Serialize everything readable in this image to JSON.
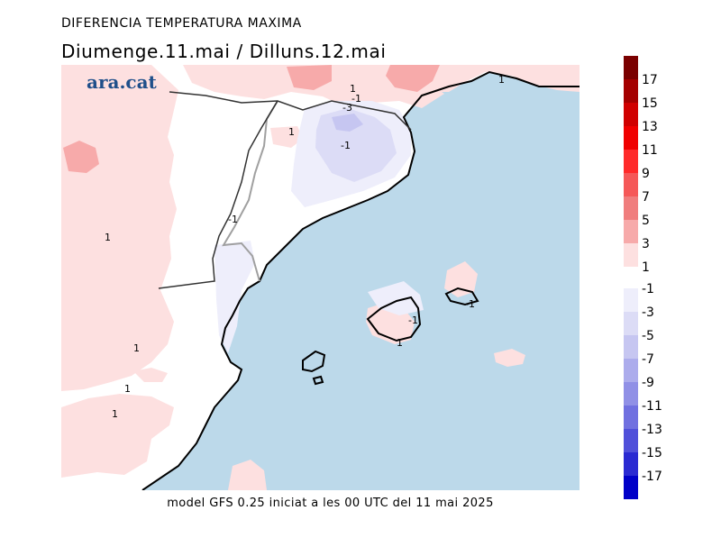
{
  "header": {
    "title": "DIFERENCIA TEMPERATURA MAXIMA",
    "subtitle": "Diumenge.11.mai  /  Dilluns.12.mai"
  },
  "logo": {
    "text": "ara.cat"
  },
  "footer": {
    "text": "model GFS 0.25 iniciat a les 00 UTC del 11 mai 2025"
  },
  "contour_labels": [
    "1",
    "-1",
    "-3",
    "-1",
    "1",
    "1",
    "-1",
    "1",
    "-1",
    "-1",
    "1",
    "1",
    "1",
    "1"
  ],
  "legend": {
    "warm": [
      {
        "label": "17",
        "color": "#7a0000"
      },
      {
        "label": "15",
        "color": "#a50000"
      },
      {
        "label": "13",
        "color": "#d00000"
      },
      {
        "label": "11",
        "color": "#f00000"
      },
      {
        "label": "9",
        "color": "#ff2a2a"
      },
      {
        "label": "7",
        "color": "#f55858"
      },
      {
        "label": "5",
        "color": "#f07d7d"
      },
      {
        "label": "3",
        "color": "#f7aaaa"
      },
      {
        "label": "1",
        "color": "#fde0e0"
      }
    ],
    "cold": [
      {
        "label": "-1",
        "color": "#eeeefb"
      },
      {
        "label": "-3",
        "color": "#dcdcf6"
      },
      {
        "label": "-5",
        "color": "#c6c6f1"
      },
      {
        "label": "-7",
        "color": "#acacec"
      },
      {
        "label": "-9",
        "color": "#9090e6"
      },
      {
        "label": "-11",
        "color": "#7070e0"
      },
      {
        "label": "-13",
        "color": "#5050da"
      },
      {
        "label": "-15",
        "color": "#2a2ad2"
      },
      {
        "label": "-17",
        "color": "#0000c8"
      }
    ]
  },
  "colors": {
    "sea": "#bcd9ea",
    "land_neutral": "#ffffff",
    "warm_light": "#fde0e0",
    "warm_mid": "#f7aaaa",
    "cold_light": "#eeeefb",
    "cold_mid": "#dcdcf6",
    "coast": "#000000",
    "border": "#a0a0a0"
  }
}
